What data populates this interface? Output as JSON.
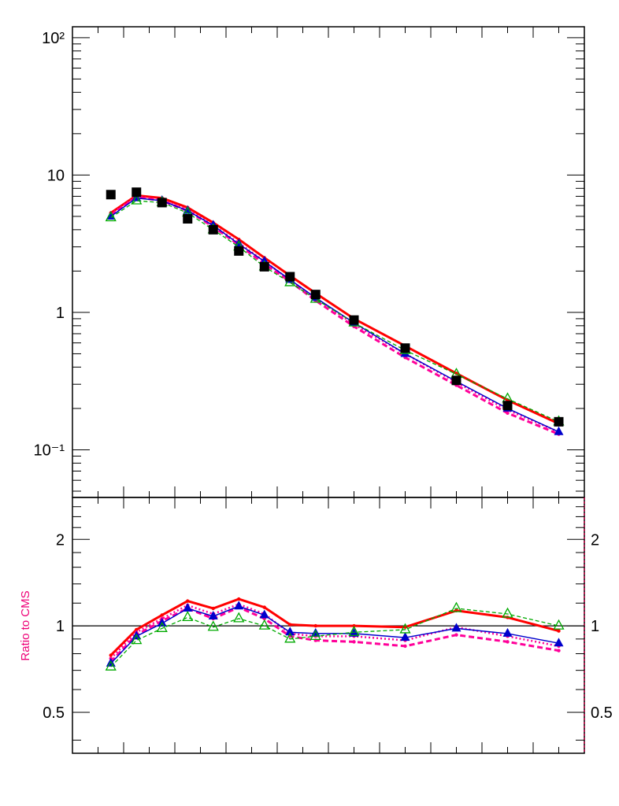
{
  "chart_data": [
    {
      "type": "line",
      "panel": "spectrum",
      "yscale": "log",
      "ylim": [
        0.045,
        120
      ],
      "xlim": [
        0,
        20
      ],
      "grid": false,
      "x": [
        1.5,
        2.5,
        3.5,
        4.5,
        5.5,
        6.5,
        7.5,
        8.5,
        9.5,
        11,
        13,
        15,
        17,
        19
      ],
      "ytick_labels": [
        "10²",
        "10",
        "1",
        "10⁻¹"
      ],
      "ytick_values": [
        100,
        10,
        1,
        0.1
      ],
      "data": {
        "name": "",
        "color": "#000000",
        "values": [
          7.2,
          7.5,
          6.3,
          4.8,
          4.0,
          2.8,
          2.15,
          1.82,
          1.35,
          0.88,
          0.55,
          0.32,
          0.21,
          0.16
        ]
      },
      "series": [
        {
          "name": "",
          "color": "#ff0000",
          "style": "solid-thick",
          "values": [
            5.3,
            7.1,
            6.8,
            5.8,
            4.5,
            3.4,
            2.5,
            1.85,
            1.38,
            0.9,
            0.57,
            0.36,
            0.23,
            0.155
          ]
        },
        {
          "name": "",
          "color": "#ff0099",
          "style": "dotted",
          "values": [
            5.2,
            7.0,
            6.6,
            5.6,
            4.3,
            3.2,
            2.35,
            1.72,
            1.27,
            0.82,
            0.5,
            0.31,
            0.195,
            0.135
          ]
        },
        {
          "name": "",
          "color": "#ff0099",
          "style": "dashed-thick",
          "values": [
            5.1,
            6.9,
            6.5,
            5.5,
            4.2,
            3.1,
            2.25,
            1.68,
            1.22,
            0.79,
            0.47,
            0.295,
            0.185,
            0.13
          ]
        },
        {
          "name": "",
          "color": "#0000cc",
          "style": "solid-triangle",
          "values": [
            5.0,
            6.8,
            6.5,
            5.5,
            4.3,
            3.15,
            2.35,
            1.73,
            1.28,
            0.84,
            0.5,
            0.315,
            0.2,
            0.135
          ]
        },
        {
          "name": "",
          "color": "#00aa00",
          "style": "dashed-open-triangle",
          "values": [
            4.9,
            6.5,
            6.3,
            5.3,
            4.0,
            3.0,
            2.15,
            1.65,
            1.25,
            0.84,
            0.53,
            0.355,
            0.235,
            0.16
          ]
        }
      ]
    },
    {
      "type": "line",
      "panel": "ratio",
      "ylabel": "Ratio to CMS",
      "yscale": "log",
      "ylim": [
        0.36,
        2.8
      ],
      "xlim": [
        0,
        20
      ],
      "reference_line": 1,
      "x": [
        1.5,
        2.5,
        3.5,
        4.5,
        5.5,
        6.5,
        7.5,
        8.5,
        9.5,
        11,
        13,
        15,
        17,
        19
      ],
      "ytick_labels": [
        "2",
        "1",
        "0.5"
      ],
      "ytick_values": [
        2,
        1,
        0.5
      ],
      "series": [
        {
          "name": "",
          "color": "#ff0000",
          "style": "solid-thick",
          "values": [
            0.79,
            0.97,
            1.09,
            1.22,
            1.15,
            1.24,
            1.16,
            1.01,
            1.0,
            1.0,
            0.99,
            1.13,
            1.07,
            0.96
          ]
        },
        {
          "name": "",
          "color": "#ff0099",
          "style": "dotted",
          "values": [
            0.77,
            0.95,
            1.06,
            1.18,
            1.1,
            1.19,
            1.1,
            0.94,
            0.92,
            0.92,
            0.89,
            0.99,
            0.92,
            0.85
          ]
        },
        {
          "name": "",
          "color": "#ff0099",
          "style": "dashed-thick",
          "values": [
            0.75,
            0.93,
            1.04,
            1.15,
            1.06,
            1.16,
            1.06,
            0.92,
            0.89,
            0.88,
            0.85,
            0.93,
            0.88,
            0.82
          ]
        },
        {
          "name": "",
          "color": "#0000cc",
          "style": "solid-triangle",
          "values": [
            0.74,
            0.92,
            1.02,
            1.15,
            1.08,
            1.17,
            1.09,
            0.95,
            0.94,
            0.94,
            0.91,
            0.98,
            0.94,
            0.87
          ]
        },
        {
          "name": "",
          "color": "#00aa00",
          "style": "dashed-open-triangle",
          "values": [
            0.72,
            0.89,
            0.98,
            1.07,
            0.99,
            1.06,
            1.0,
            0.9,
            0.92,
            0.95,
            0.97,
            1.15,
            1.1,
            1.0
          ]
        }
      ]
    }
  ],
  "colors": {
    "ratio_label": "#ee0077",
    "ratio_frame": "#bb0044",
    "frame": "#000000"
  }
}
